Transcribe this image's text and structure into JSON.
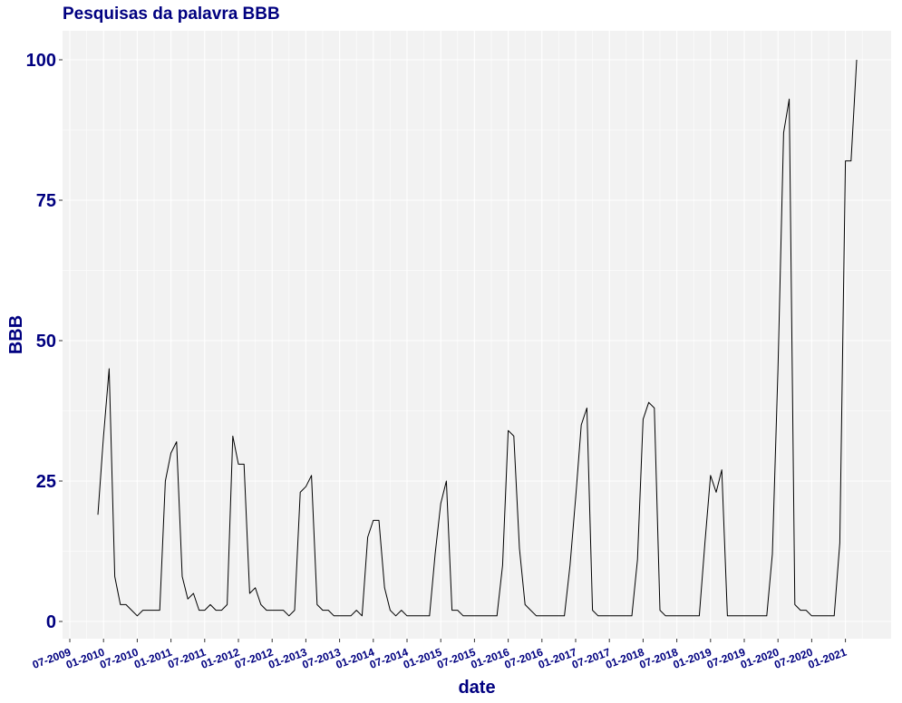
{
  "chart_data": {
    "type": "line",
    "title": "Pesquisas da palavra BBB",
    "xlabel": "date",
    "ylabel": "BBB",
    "ylim": [
      0,
      100
    ],
    "yticks": [
      "0",
      "25",
      "50",
      "75",
      "100"
    ],
    "xlim": [
      "2009-06",
      "2021-04"
    ],
    "xticks": [
      "07-2009",
      "01-2010",
      "07-2010",
      "01-2011",
      "07-2011",
      "01-2012",
      "07-2012",
      "01-2013",
      "07-2013",
      "01-2014",
      "07-2014",
      "01-2015",
      "07-2015",
      "01-2016",
      "07-2016",
      "01-2017",
      "07-2017",
      "01-2018",
      "07-2018",
      "01-2019",
      "07-2019",
      "01-2020",
      "07-2020",
      "01-2021"
    ],
    "grid": true,
    "line_color": "#000000",
    "background_color": "#f2f2f2",
    "text_color": "#000080",
    "series": [
      {
        "x": [
          "2009-12",
          "2010-01",
          "2010-02",
          "2010-03",
          "2010-04",
          "2010-05",
          "2010-06",
          "2010-07",
          "2010-08",
          "2010-09",
          "2010-10",
          "2010-11",
          "2010-12",
          "2011-01",
          "2011-02",
          "2011-03",
          "2011-04",
          "2011-05",
          "2011-06",
          "2011-07",
          "2011-08",
          "2011-09",
          "2011-10",
          "2011-11",
          "2011-12",
          "2012-01",
          "2012-02",
          "2012-03",
          "2012-04",
          "2012-05",
          "2012-06",
          "2012-07",
          "2012-08",
          "2012-09",
          "2012-10",
          "2012-11",
          "2012-12",
          "2013-01",
          "2013-02",
          "2013-03",
          "2013-04",
          "2013-05",
          "2013-06",
          "2013-07",
          "2013-08",
          "2013-09",
          "2013-10",
          "2013-11",
          "2013-12",
          "2014-01",
          "2014-02",
          "2014-03",
          "2014-04",
          "2014-05",
          "2014-06",
          "2014-07",
          "2014-08",
          "2014-09",
          "2014-10",
          "2014-11",
          "2014-12",
          "2015-01",
          "2015-02",
          "2015-03",
          "2015-04",
          "2015-05",
          "2015-06",
          "2015-07",
          "2015-08",
          "2015-09",
          "2015-10",
          "2015-11",
          "2015-12",
          "2016-01",
          "2016-02",
          "2016-03",
          "2016-04",
          "2016-05",
          "2016-06",
          "2016-07",
          "2016-08",
          "2016-09",
          "2016-10",
          "2016-11",
          "2016-12",
          "2017-01",
          "2017-02",
          "2017-03",
          "2017-04",
          "2017-05",
          "2017-06",
          "2017-07",
          "2017-08",
          "2017-09",
          "2017-10",
          "2017-11",
          "2017-12",
          "2018-01",
          "2018-02",
          "2018-03",
          "2018-04",
          "2018-05",
          "2018-06",
          "2018-07",
          "2018-08",
          "2018-09",
          "2018-10",
          "2018-11",
          "2018-12",
          "2019-01",
          "2019-02",
          "2019-03",
          "2019-04",
          "2019-05",
          "2019-06",
          "2019-07",
          "2019-08",
          "2019-09",
          "2019-10",
          "2019-11",
          "2019-12",
          "2020-01",
          "2020-02",
          "2020-03",
          "2020-04",
          "2020-05",
          "2020-06",
          "2020-07",
          "2020-08",
          "2020-09",
          "2020-10",
          "2020-11",
          "2020-12",
          "2021-01",
          "2021-02",
          "2021-03"
        ],
        "values": [
          19,
          33,
          45,
          8,
          3,
          3,
          2,
          1,
          2,
          2,
          2,
          2,
          25,
          30,
          32,
          8,
          4,
          5,
          2,
          2,
          3,
          2,
          2,
          3,
          33,
          28,
          28,
          5,
          6,
          3,
          2,
          2,
          2,
          2,
          1,
          2,
          23,
          24,
          26,
          3,
          2,
          2,
          1,
          1,
          1,
          1,
          2,
          1,
          15,
          18,
          18,
          6,
          2,
          1,
          2,
          1,
          1,
          1,
          1,
          1,
          12,
          21,
          25,
          2,
          2,
          1,
          1,
          1,
          1,
          1,
          1,
          1,
          10,
          34,
          33,
          13,
          3,
          2,
          1,
          1,
          1,
          1,
          1,
          1,
          10,
          22,
          35,
          38,
          2,
          1,
          1,
          1,
          1,
          1,
          1,
          1,
          11,
          36,
          39,
          38,
          2,
          1,
          1,
          1,
          1,
          1,
          1,
          1,
          14,
          26,
          23,
          27,
          1,
          1,
          1,
          1,
          1,
          1,
          1,
          1,
          12,
          45,
          87,
          93,
          3,
          2,
          2,
          1,
          1,
          1,
          1,
          1,
          14,
          82,
          82,
          100
        ]
      }
    ]
  }
}
